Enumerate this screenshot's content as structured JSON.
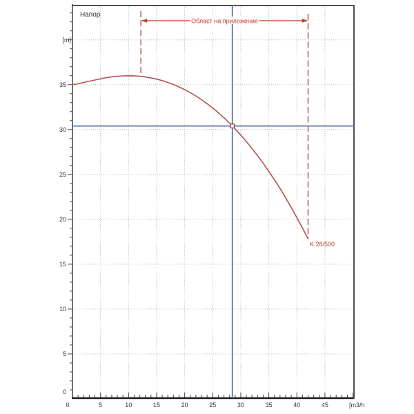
{
  "chart_data": {
    "type": "line",
    "title": "Напор",
    "background": "#ffffff",
    "grid": "dotted, major every 5 units both axes",
    "legend": "none",
    "text_color": "#333333",
    "grid_color": "#bfbfbf",
    "axis_color": "#444444",
    "frame_color": "#4f4f4f",
    "x_axis": {
      "unit_label": "[m3/h",
      "tick_labels": [
        0,
        5,
        10,
        15,
        20,
        25,
        30,
        35,
        40,
        45
      ],
      "gridlines": [
        5,
        10,
        15,
        20,
        25,
        30,
        35,
        40,
        45
      ],
      "range": [
        0,
        50.3
      ],
      "minor_tick_step": 1
    },
    "y_axis": {
      "unit_label": "[m]",
      "tick_labels": [
        0,
        5,
        10,
        15,
        20,
        25,
        30,
        35
      ],
      "gridlines": [
        5,
        10,
        15,
        20,
        25,
        30,
        35,
        40
      ],
      "range": [
        0,
        43.9
      ],
      "minor_tick_step": 1
    },
    "series": [
      {
        "name": "K 28/500",
        "color": "#b2524d",
        "points": [
          [
            0,
            35.0
          ],
          [
            1,
            35.1
          ],
          [
            2,
            35.25
          ],
          [
            3,
            35.4
          ],
          [
            4,
            35.52
          ],
          [
            5,
            35.66
          ],
          [
            6,
            35.78
          ],
          [
            7,
            35.87
          ],
          [
            8,
            35.94
          ],
          [
            9,
            35.98
          ],
          [
            10,
            36.0
          ],
          [
            11,
            35.99
          ],
          [
            12,
            35.94
          ],
          [
            13,
            35.86
          ],
          [
            14,
            35.76
          ],
          [
            15,
            35.62
          ],
          [
            16,
            35.46
          ],
          [
            17,
            35.25
          ],
          [
            18,
            35.02
          ],
          [
            19,
            34.75
          ],
          [
            20,
            34.45
          ],
          [
            21,
            34.11
          ],
          [
            22,
            33.74
          ],
          [
            23,
            33.33
          ],
          [
            24,
            32.88
          ],
          [
            25,
            32.4
          ],
          [
            26,
            31.88
          ],
          [
            27,
            31.32
          ],
          [
            28,
            30.72
          ],
          [
            28.5,
            30.4
          ],
          [
            29,
            30.08
          ],
          [
            30,
            29.39
          ],
          [
            31,
            28.67
          ],
          [
            32,
            27.9
          ],
          [
            33,
            27.09
          ],
          [
            34,
            26.24
          ],
          [
            35,
            25.33
          ],
          [
            36,
            24.41
          ],
          [
            37,
            23.43
          ],
          [
            38,
            22.4
          ],
          [
            39,
            21.32
          ],
          [
            40,
            20.2
          ],
          [
            41,
            19.03
          ],
          [
            42,
            17.81
          ]
        ]
      }
    ],
    "curve_label": {
      "text": "K 28/500",
      "x": 42.3,
      "y": 17.0,
      "color": "#c0392b"
    },
    "operating_point": {
      "x": 28.5,
      "y": 30.4,
      "marker": "open-square",
      "marker_stroke": "#8b3535",
      "marker_fill": "#ffffff"
    },
    "crosshair": {
      "color": "#5b74ae",
      "x_value": 28.5,
      "y_value": 30.4
    },
    "application_range": {
      "label": "Област на приложение",
      "x_from": 12.2,
      "x_to": 42,
      "arrow_color": "#c0392b",
      "dash_color": "#a86058",
      "label_color": "#c0392b"
    }
  }
}
